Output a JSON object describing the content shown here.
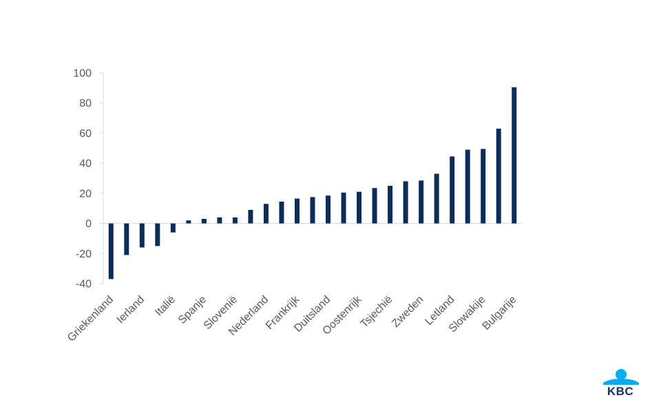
{
  "chart_data": {
    "type": "bar",
    "categories": [
      "Griekenland",
      "",
      "Ierland",
      "",
      "Italië",
      "",
      "Spanje",
      "",
      "Slovenië",
      "",
      "Nederland",
      "",
      "Frankrijk",
      "",
      "Duitsland",
      "",
      "Oostenrijk",
      "",
      "Tsjechië",
      "",
      "Zweden",
      "",
      "Letland",
      "",
      "Slowakije",
      "",
      "Bulgarije"
    ],
    "values": [
      -37,
      -21,
      -16,
      -15,
      -6,
      2,
      3,
      4,
      4,
      9,
      13,
      14.5,
      16.5,
      17.5,
      18.5,
      20.5,
      21,
      23.5,
      25,
      28,
      28.5,
      33,
      44.5,
      49,
      49.5,
      63,
      90.5
    ],
    "ylim": [
      -40,
      100
    ],
    "yticks": [
      -40,
      -20,
      0,
      20,
      40,
      60,
      80,
      100
    ],
    "bar_color": "#0c2d5a",
    "axis_color": "#d9d9d9",
    "title": "",
    "xlabel": "",
    "ylabel": ""
  },
  "logo": {
    "text": "KBC",
    "colors": {
      "sky": "#00aeef",
      "navy": "#1b2e5e"
    }
  }
}
